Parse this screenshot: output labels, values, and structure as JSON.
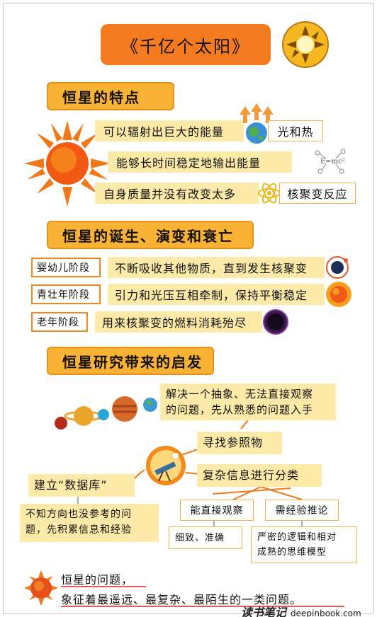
{
  "title": "《千亿个太阳》",
  "sections": {
    "traits": "恒星的特点",
    "lifecycle": "恒星的诞生、演变和衰亡",
    "inspiration": "恒星研究带来的启发"
  },
  "traits": {
    "t1": "可以辐射出巨大的能量",
    "t1_result": "光和热",
    "t2": "能够长时间稳定地输出能量",
    "t3": "自身质量并没有改变太多",
    "t3_result": "核聚变反应"
  },
  "stages": [
    {
      "label": "婴幼儿阶段",
      "desc": "不断吸收其他物质，直到发生核聚变"
    },
    {
      "label": "青壮年阶段",
      "desc": "引力和光压互相牵制，保持平衡稳定"
    },
    {
      "label": "老年阶段",
      "desc": "用来核聚变的燃料消耗殆尽"
    }
  ],
  "inspiration": {
    "abstract_l1": "解决一个抽象、无法直接观察",
    "abstract_l2": "的问题，先从熟悉的问题入手",
    "reference": "寻找参照物",
    "database": "建立“数据库”",
    "database_note_l1": "不知方向也没参考的问",
    "database_note_l2": "题，先积累信息和经验",
    "classify": "复杂信息进行分类",
    "direct": "能直接观察",
    "reasoning": "需经验推论",
    "direct_note": "细致、准确",
    "reasoning_note_l1": "严密的逻辑和相对",
    "reasoning_note_l2": "成熟的思维模型"
  },
  "footer": {
    "line1": "恒星的问题，",
    "line2": "象征着最遥远、最复杂、最陌生的一类问题。"
  },
  "brand": {
    "name": "读书笔记",
    "url": "deepinbook.com"
  },
  "colors": {
    "orange": "#f47b20",
    "section": "#f9b233",
    "pale": "#fde9a8",
    "outline": "#e98a1e"
  }
}
